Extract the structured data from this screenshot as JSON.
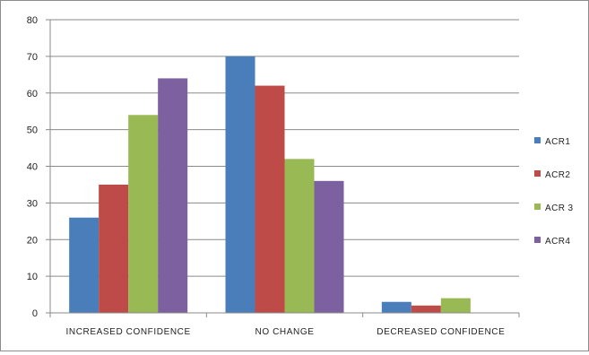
{
  "chart_data": {
    "type": "bar",
    "title": "",
    "xlabel": "",
    "ylabel": "",
    "ylim": [
      0,
      80
    ],
    "yticks": [
      "0",
      "10",
      "20",
      "30",
      "40",
      "50",
      "60",
      "70",
      "80"
    ],
    "grid": true,
    "legend_position": "right",
    "categories": [
      "INCREASED CONFIDENCE",
      "NO CHANGE",
      "DECREASED CONFIDENCE"
    ],
    "series": [
      {
        "name": "ACR1",
        "color": "#4a7ebb",
        "values": [
          26,
          70,
          3
        ]
      },
      {
        "name": "ACR2",
        "color": "#be4b48",
        "values": [
          35,
          62,
          2
        ]
      },
      {
        "name": "ACR 3",
        "color": "#98b954",
        "values": [
          54,
          42,
          4
        ]
      },
      {
        "name": "ACR4",
        "color": "#7d60a0",
        "values": [
          64,
          36,
          0
        ]
      }
    ]
  }
}
